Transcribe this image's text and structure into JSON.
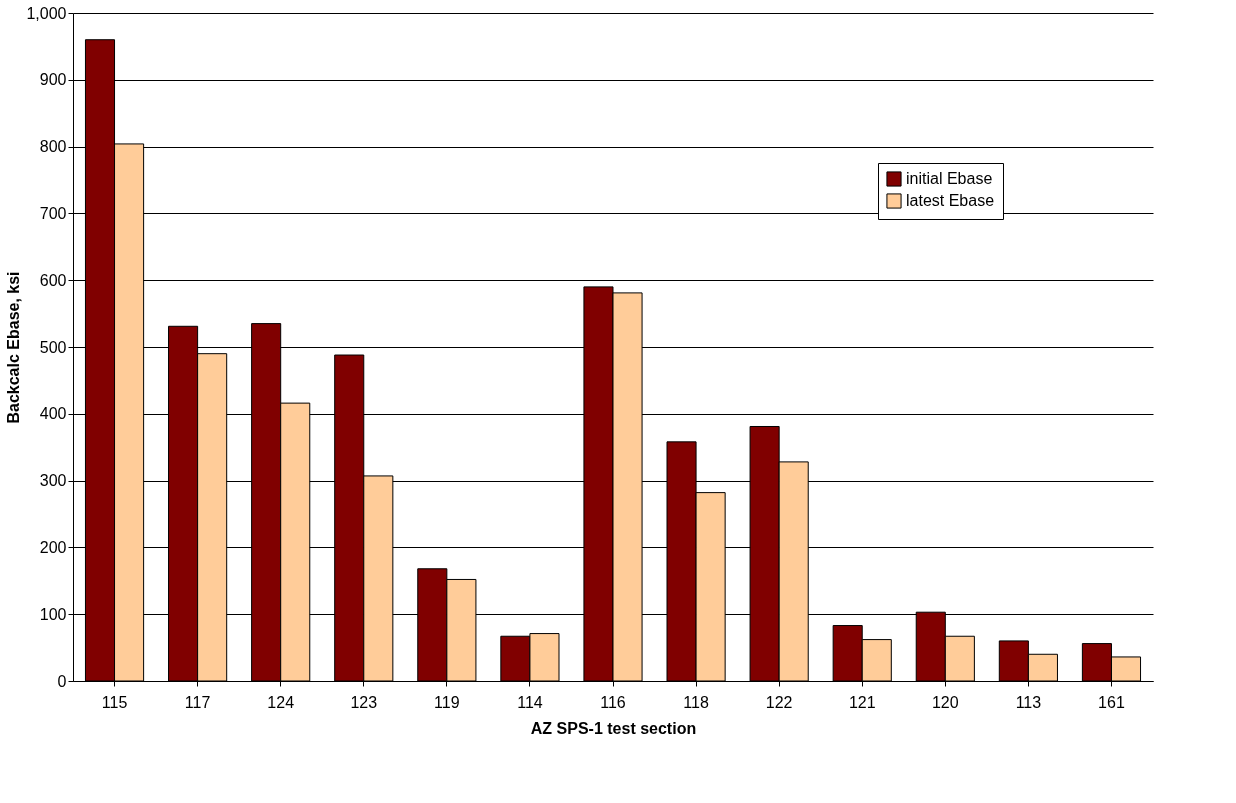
{
  "chart_data": {
    "type": "bar",
    "xlabel": "AZ SPS-1 test section",
    "ylabel": "Backcalc Ebase, ksi",
    "categories": [
      "115",
      "117",
      "124",
      "123",
      "119",
      "114",
      "116",
      "118",
      "122",
      "121",
      "120",
      "113",
      "161"
    ],
    "series": [
      {
        "name": "initial Ebase",
        "color": "#800000",
        "values": [
          960,
          531,
          535,
          488,
          168,
          67,
          590,
          358,
          381,
          83,
          103,
          60,
          56
        ]
      },
      {
        "name": "latest Ebase",
        "color": "#ffcc99",
        "values": [
          804,
          490,
          416,
          307,
          152,
          71,
          581,
          282,
          328,
          62,
          67,
          40,
          36
        ]
      }
    ],
    "ylim": [
      0,
      1000
    ],
    "yticks": [
      0,
      100,
      200,
      300,
      400,
      500,
      600,
      700,
      800,
      900,
      {
        "value": 1000,
        "label": "1,000"
      }
    ],
    "grid": "y",
    "legend": "top right"
  }
}
